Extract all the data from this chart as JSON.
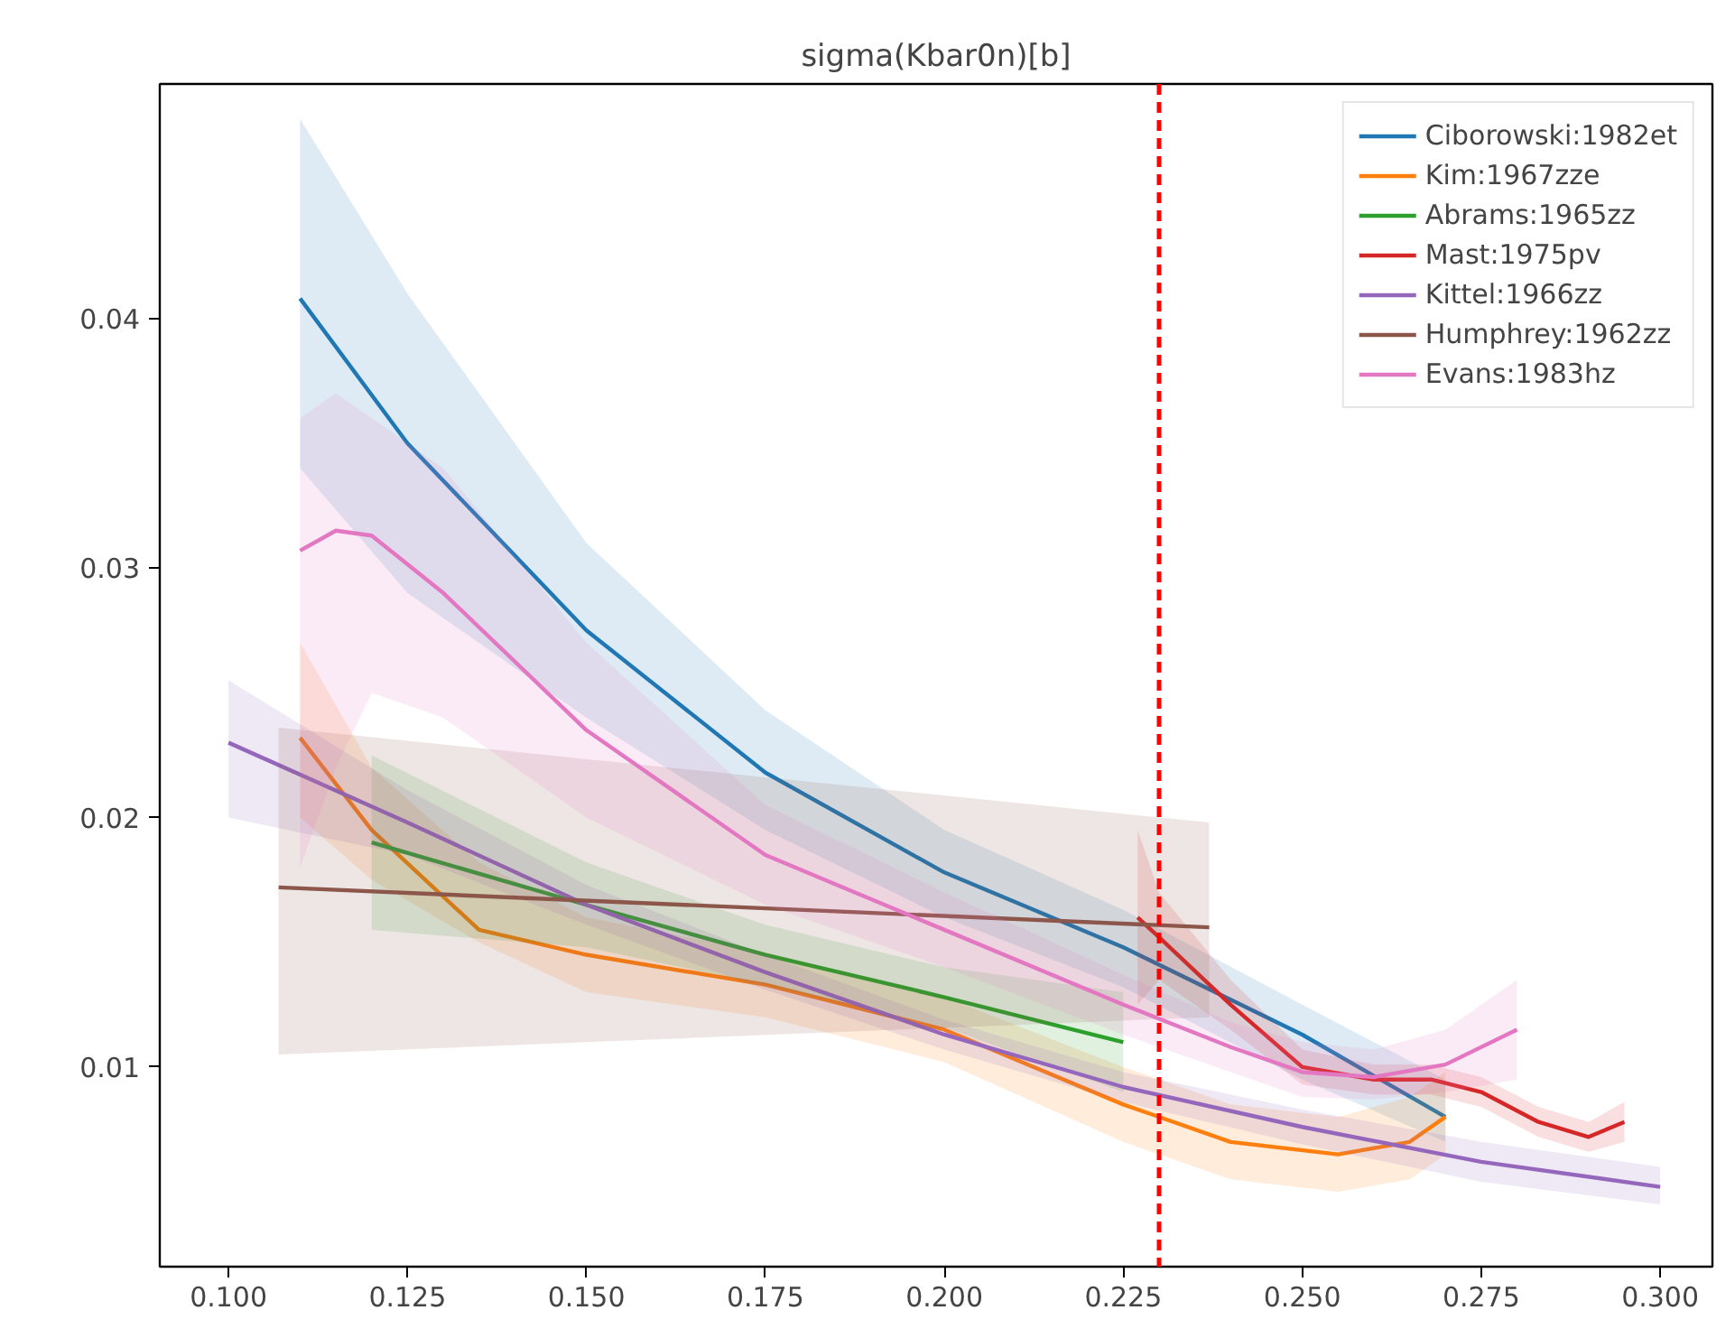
{
  "chart_data": {
    "type": "line",
    "title": "sigma(Kbar0n)[b]",
    "xlim": [
      0.0904,
      0.3073
    ],
    "ylim": [
      0.002,
      0.0494
    ],
    "xticks": [
      {
        "value": 0.1,
        "label": "0.100"
      },
      0.125,
      {
        "value": 0.15,
        "label": "0.150"
      },
      0.175,
      {
        "value": 0.2,
        "label": "0.200"
      },
      0.225,
      {
        "value": 0.25,
        "label": "0.250"
      },
      0.275,
      {
        "value": 0.3,
        "label": "0.300"
      }
    ],
    "yticks": [
      0.01,
      0.02,
      0.03,
      0.04
    ],
    "grid": false,
    "legend": "top right",
    "marker": "none",
    "line_style": "solid",
    "ref_lines": [
      {
        "axis": "x",
        "value": 0.23,
        "label": null,
        "color": "#ff0000",
        "line_style": "dashed"
      }
    ],
    "series": [
      {
        "name": "Ciborowski:1982et",
        "color": "#1f77b4",
        "x": [
          0.11,
          0.125,
          0.15,
          0.175,
          0.2,
          0.225,
          0.25,
          0.27
        ],
        "values": [
          0.0408,
          0.035,
          0.0275,
          0.0218,
          0.0178,
          0.0148,
          0.0113,
          0.008
        ],
        "lower": [
          0.034,
          0.029,
          0.024,
          0.0195,
          0.016,
          0.0132,
          0.0095,
          0.007
        ],
        "upper": [
          0.048,
          0.041,
          0.031,
          0.0243,
          0.0195,
          0.0163,
          0.0125,
          0.0095
        ]
      },
      {
        "name": "Kim:1967zze",
        "color": "#ff7f0e",
        "x": [
          0.11,
          0.12,
          0.135,
          0.15,
          0.175,
          0.2,
          0.225,
          0.24,
          0.255,
          0.265,
          0.27
        ],
        "values": [
          0.0232,
          0.0195,
          0.0155,
          0.0145,
          0.0133,
          0.0115,
          0.0085,
          0.007,
          0.0065,
          0.007,
          0.008
        ],
        "lower": [
          0.02,
          0.0175,
          0.015,
          0.013,
          0.012,
          0.0102,
          0.007,
          0.0055,
          0.005,
          0.0055,
          0.0065
        ],
        "upper": [
          0.027,
          0.022,
          0.0182,
          0.016,
          0.0146,
          0.0128,
          0.01,
          0.0085,
          0.008,
          0.0088,
          0.0098
        ]
      },
      {
        "name": "Abrams:1965zz",
        "color": "#2ca02c",
        "x": [
          0.12,
          0.15,
          0.175,
          0.2,
          0.225
        ],
        "values": [
          0.019,
          0.0165,
          0.0145,
          0.0128,
          0.011
        ],
        "lower": [
          0.0155,
          0.0148,
          0.0133,
          0.0116,
          0.009
        ],
        "upper": [
          0.0225,
          0.0182,
          0.0157,
          0.014,
          0.013
        ]
      },
      {
        "name": "Mast:1975pv",
        "color": "#d62728",
        "x": [
          0.227,
          0.23,
          0.24,
          0.25,
          0.26,
          0.268,
          0.275,
          0.283,
          0.29,
          0.295
        ],
        "values": [
          0.016,
          0.0152,
          0.0125,
          0.01,
          0.0095,
          0.0095,
          0.009,
          0.0078,
          0.0072,
          0.0078
        ],
        "lower": [
          0.0125,
          0.0135,
          0.0115,
          0.0093,
          0.0089,
          0.0089,
          0.0084,
          0.0072,
          0.0066,
          0.007
        ],
        "upper": [
          0.0195,
          0.017,
          0.0135,
          0.0107,
          0.0101,
          0.0101,
          0.0096,
          0.0084,
          0.0078,
          0.0086
        ]
      },
      {
        "name": "Kittel:1966zz",
        "color": "#9467bd",
        "x": [
          0.1,
          0.125,
          0.15,
          0.175,
          0.2,
          0.225,
          0.25,
          0.275,
          0.3
        ],
        "values": [
          0.023,
          0.0198,
          0.0165,
          0.0138,
          0.0113,
          0.0092,
          0.0076,
          0.0062,
          0.0052
        ],
        "lower": [
          0.02,
          0.0185,
          0.0157,
          0.0131,
          0.0107,
          0.0086,
          0.0069,
          0.0054,
          0.0045
        ],
        "upper": [
          0.0255,
          0.0211,
          0.0173,
          0.0145,
          0.0119,
          0.0098,
          0.0083,
          0.007,
          0.006
        ]
      },
      {
        "name": "Humphrey:1962zz",
        "color": "#8c564b",
        "x": [
          0.107,
          0.237
        ],
        "values": [
          0.0172,
          0.0156
        ],
        "lower": [
          0.0105,
          0.012
        ],
        "upper": [
          0.0236,
          0.0198
        ]
      },
      {
        "name": "Evans:1983hz",
        "color": "#e377c2",
        "x": [
          0.11,
          0.115,
          0.12,
          0.13,
          0.15,
          0.175,
          0.2,
          0.225,
          0.24,
          0.25,
          0.26,
          0.27,
          0.28
        ],
        "values": [
          0.0307,
          0.0315,
          0.0313,
          0.029,
          0.0235,
          0.0185,
          0.0155,
          0.0125,
          0.0108,
          0.0098,
          0.0096,
          0.0101,
          0.0115
        ],
        "lower": [
          0.018,
          0.022,
          0.025,
          0.024,
          0.02,
          0.0165,
          0.014,
          0.0113,
          0.0098,
          0.0088,
          0.0087,
          0.009,
          0.0095
        ],
        "upper": [
          0.036,
          0.037,
          0.036,
          0.034,
          0.027,
          0.0205,
          0.017,
          0.0137,
          0.0118,
          0.011,
          0.0107,
          0.0115,
          0.0135
        ]
      }
    ]
  }
}
